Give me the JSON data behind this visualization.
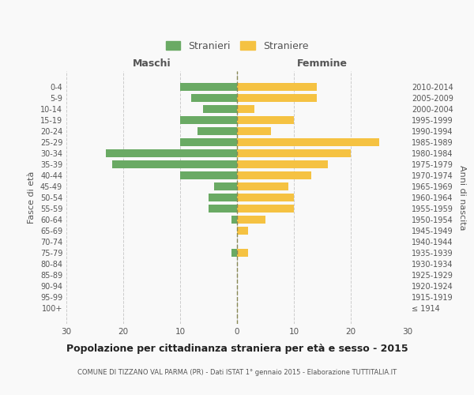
{
  "age_groups": [
    "100+",
    "95-99",
    "90-94",
    "85-89",
    "80-84",
    "75-79",
    "70-74",
    "65-69",
    "60-64",
    "55-59",
    "50-54",
    "45-49",
    "40-44",
    "35-39",
    "30-34",
    "25-29",
    "20-24",
    "15-19",
    "10-14",
    "5-9",
    "0-4"
  ],
  "birth_years": [
    "≤ 1914",
    "1915-1919",
    "1920-1924",
    "1925-1929",
    "1930-1934",
    "1935-1939",
    "1940-1944",
    "1945-1949",
    "1950-1954",
    "1955-1959",
    "1960-1964",
    "1965-1969",
    "1970-1974",
    "1975-1979",
    "1980-1984",
    "1985-1989",
    "1990-1994",
    "1995-1999",
    "2000-2004",
    "2005-2009",
    "2010-2014"
  ],
  "males": [
    0,
    0,
    0,
    0,
    0,
    1,
    0,
    0,
    1,
    5,
    5,
    4,
    10,
    22,
    23,
    10,
    7,
    10,
    6,
    8,
    10
  ],
  "females": [
    0,
    0,
    0,
    0,
    0,
    2,
    0,
    2,
    5,
    10,
    10,
    9,
    13,
    16,
    20,
    25,
    6,
    10,
    3,
    14,
    14
  ],
  "male_color": "#6aaa64",
  "female_color": "#f5c242",
  "title": "Popolazione per cittadinanza straniera per età e sesso - 2015",
  "subtitle": "COMUNE DI TIZZANO VAL PARMA (PR) - Dati ISTAT 1° gennaio 2015 - Elaborazione TUTTITALIA.IT",
  "xlabel_left": "Maschi",
  "xlabel_right": "Femmine",
  "ylabel_left": "Fasce di età",
  "ylabel_right": "Anni di nascita",
  "legend_stranieri": "Stranieri",
  "legend_straniere": "Straniere",
  "xlim": 30,
  "bg_color": "#f9f9f9",
  "grid_color": "#cccccc",
  "text_color": "#555555",
  "dashed_line_color": "#888855"
}
